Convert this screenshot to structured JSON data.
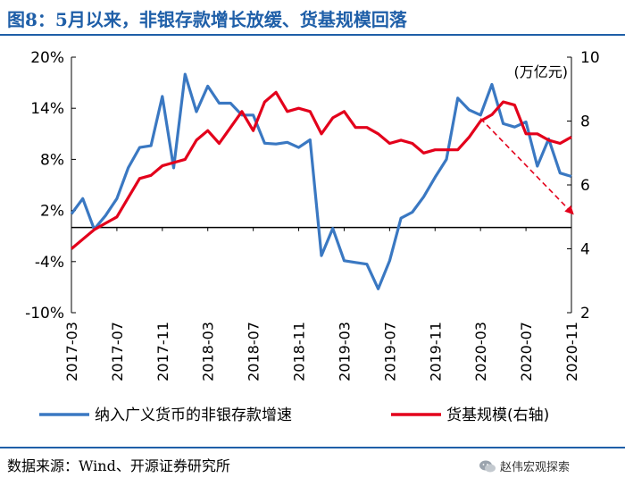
{
  "header": {
    "title": "图8：5月以来，非银存款增长放缓、货基规模回落"
  },
  "footer": {
    "source": "数据来源：Wind、开源证券研究所",
    "brand": "赵伟宏观探索"
  },
  "colors": {
    "title": "#1f5fa8",
    "series_blue": "#3a78c2",
    "series_red": "#e3001b",
    "arrow": "#e3001b"
  },
  "icons": {
    "brand": "wechat-icon"
  },
  "chart_data": {
    "type": "line",
    "unit_label": "(万亿元)",
    "left_axis": {
      "ylim": [
        -10,
        20
      ],
      "ticks": [
        -10,
        -4,
        2,
        8,
        14,
        20
      ],
      "tick_labels": [
        "-10%",
        "-4%",
        "2%",
        "8%",
        "14%",
        "20%"
      ]
    },
    "right_axis": {
      "ylim": [
        2,
        10
      ],
      "ticks": [
        2,
        4,
        6,
        8,
        10
      ],
      "tick_labels": [
        "2",
        "4",
        "6",
        "8",
        "10"
      ]
    },
    "x_tick_labels": [
      "2017-03",
      "2017-07",
      "2017-11",
      "2018-03",
      "2018-07",
      "2018-11",
      "2019-03",
      "2019-07",
      "2019-11",
      "2020-03",
      "2020-07",
      "2020-11"
    ],
    "x": [
      "2017-03",
      "2017-04",
      "2017-05",
      "2017-06",
      "2017-07",
      "2017-08",
      "2017-09",
      "2017-10",
      "2017-11",
      "2017-12",
      "2018-01",
      "2018-02",
      "2018-03",
      "2018-04",
      "2018-05",
      "2018-06",
      "2018-07",
      "2018-08",
      "2018-09",
      "2018-10",
      "2018-11",
      "2018-12",
      "2019-01",
      "2019-02",
      "2019-03",
      "2019-04",
      "2019-05",
      "2019-06",
      "2019-07",
      "2019-08",
      "2019-09",
      "2019-10",
      "2019-11",
      "2019-12",
      "2020-01",
      "2020-02",
      "2020-03",
      "2020-04",
      "2020-05",
      "2020-06",
      "2020-07",
      "2020-08",
      "2020-09",
      "2020-10",
      "2020-11"
    ],
    "series": [
      {
        "name": "纳入广义货币的非银存款增速",
        "axis": "left",
        "values": [
          1.6,
          3.4,
          -0.2,
          1.4,
          3.4,
          7.0,
          9.4,
          9.6,
          15.4,
          7.0,
          18.0,
          13.6,
          16.6,
          14.6,
          14.6,
          13.2,
          13.2,
          9.9,
          9.8,
          10.0,
          9.4,
          10.3,
          -3.3,
          -0.1,
          -3.9,
          -4.1,
          -4.3,
          -7.2,
          -3.9,
          1.1,
          1.8,
          3.6,
          5.9,
          8.0,
          15.2,
          13.8,
          13.2,
          16.8,
          12.2,
          11.8,
          12.4,
          7.2,
          10.4,
          6.4,
          6.0
        ]
      },
      {
        "name": "货基规模(右轴)",
        "axis": "right",
        "values": [
          4.0,
          4.3,
          4.6,
          4.8,
          5.0,
          5.6,
          6.2,
          6.3,
          6.6,
          6.7,
          6.8,
          7.4,
          7.7,
          7.3,
          7.8,
          8.3,
          7.7,
          8.6,
          8.9,
          8.3,
          8.4,
          8.3,
          7.6,
          8.1,
          8.3,
          7.8,
          7.8,
          7.6,
          7.3,
          7.4,
          7.3,
          7.0,
          7.1,
          7.1,
          7.1,
          7.5,
          8.0,
          8.2,
          8.6,
          8.5,
          7.6,
          7.6,
          7.4,
          7.3,
          7.5
        ]
      }
    ],
    "annotation": {
      "type": "arrow",
      "from_x": "2020-03",
      "from_y_left": 12.8,
      "to_x": "2020-11",
      "to_y_left": 1.8,
      "style": "dashed",
      "axis": "left"
    },
    "legend_placement": "bottom"
  }
}
